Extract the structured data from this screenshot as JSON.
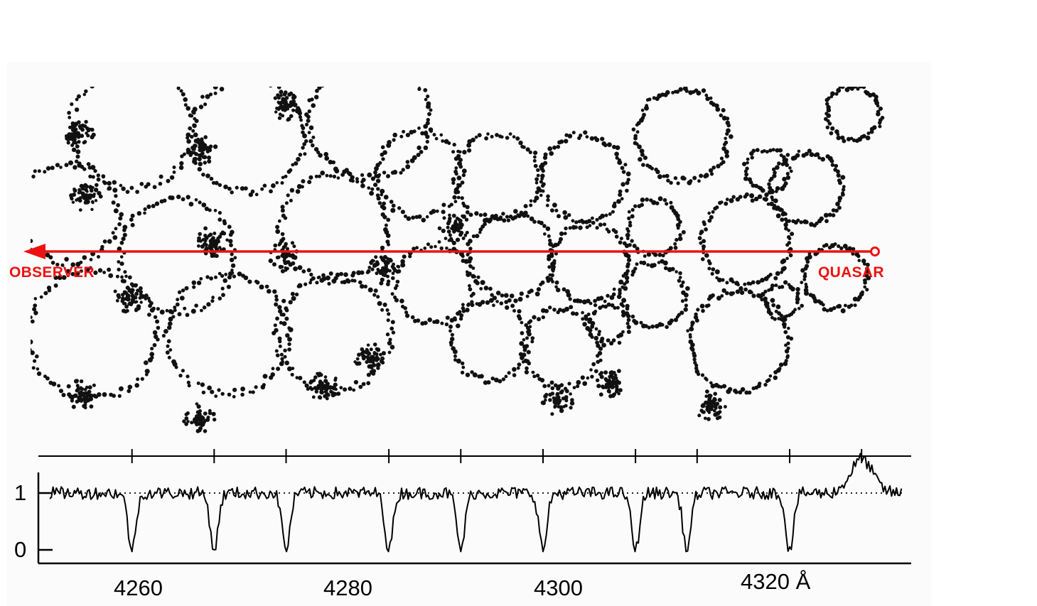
{
  "labels": {
    "observer": "OBSERVER",
    "quasar": "QUASAR"
  },
  "spectrum": {
    "y_ticks": [
      "1",
      "0"
    ],
    "x_ticks": [
      "4260",
      "4280",
      "4300",
      "4320 Å"
    ],
    "x_range": [
      4250,
      4333
    ],
    "absorption_lines": [
      4258,
      4266,
      4273,
      4283,
      4290,
      4298,
      4307,
      4312,
      4322
    ]
  },
  "colors": {
    "sightline": "#ee1111",
    "ink": "#111111"
  }
}
